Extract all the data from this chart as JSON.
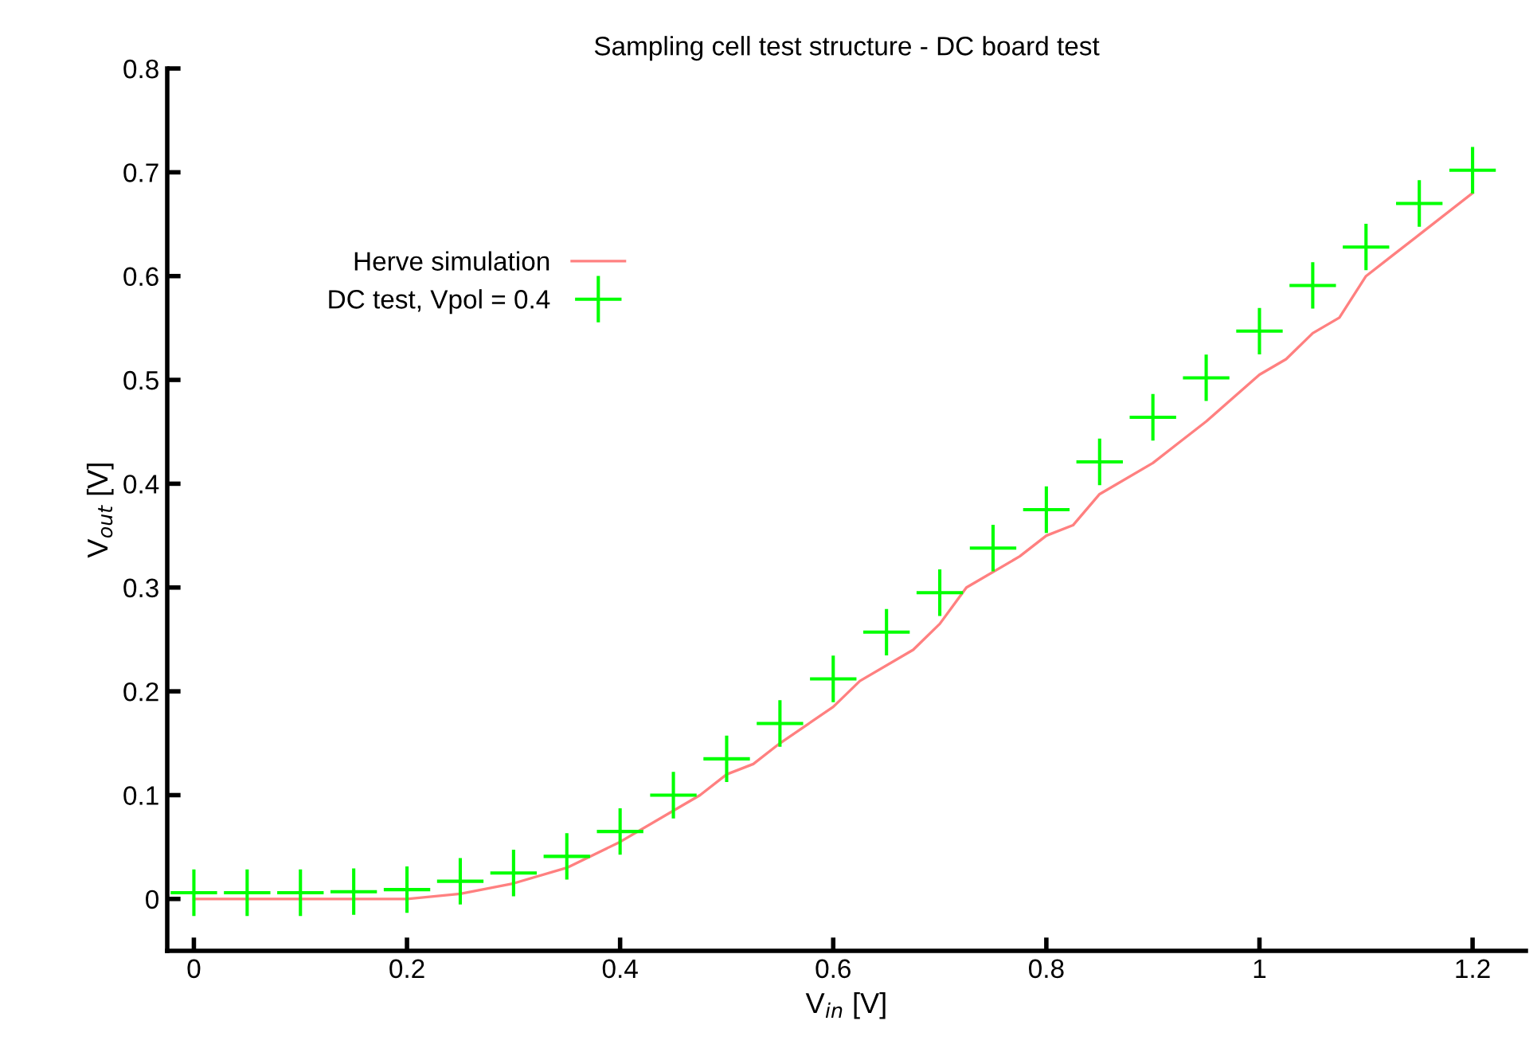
{
  "chart_data": {
    "type": "line",
    "title": "Sampling cell test structure - DC board test",
    "xlabel": "V$_{in}$ [V]",
    "ylabel": "V$_{out}$ [V]",
    "xlim": [
      -0.025,
      1.25
    ],
    "ylim": [
      -0.05,
      0.8
    ],
    "xticks": [
      0,
      0.2,
      0.4,
      0.6,
      0.8,
      1,
      1.2
    ],
    "yticks": [
      0,
      0.1,
      0.2,
      0.3,
      0.4,
      0.5,
      0.6,
      0.7,
      0.8
    ],
    "grid": false,
    "legend": "top left",
    "series": [
      {
        "name": "Herve simulation",
        "color": "#ff8080",
        "marker": "none",
        "x": [
          0,
          0.2,
          0.25,
          0.3,
          0.35,
          0.4,
          0.45,
          0.475,
          0.5,
          0.525,
          0.55,
          0.6,
          0.625,
          0.675,
          0.7,
          0.725,
          0.775,
          0.8,
          0.825,
          0.85,
          0.9,
          0.925,
          0.95,
          1.0,
          1.025,
          1.05,
          1.075,
          1.1,
          1.125,
          1.15,
          1.2
        ],
        "values": [
          0,
          0,
          0.005,
          0.015,
          0.03,
          0.055,
          0.085,
          0.1,
          0.12,
          0.13,
          0.15,
          0.185,
          0.21,
          0.24,
          0.265,
          0.3,
          0.33,
          0.35,
          0.36,
          0.39,
          0.42,
          0.44,
          0.46,
          0.505,
          0.52,
          0.545,
          0.56,
          0.6,
          0.62,
          0.64,
          0.68
        ]
      },
      {
        "name": "DC test, Vpol = 0.4",
        "type": "scatter",
        "color": "#00ff00",
        "marker": "cross",
        "x": [
          0,
          0.05,
          0.1,
          0.15,
          0.2,
          0.25,
          0.3,
          0.35,
          0.4,
          0.45,
          0.5,
          0.55,
          0.6,
          0.65,
          0.7,
          0.75,
          0.8,
          0.85,
          0.9,
          0.95,
          1.0,
          1.05,
          1.1,
          1.15,
          1.2
        ],
        "values": [
          0.006,
          0.006,
          0.006,
          0.007,
          0.009,
          0.017,
          0.025,
          0.041,
          0.065,
          0.1,
          0.135,
          0.169,
          0.212,
          0.257,
          0.295,
          0.338,
          0.375,
          0.421,
          0.464,
          0.502,
          0.547,
          0.591,
          0.628,
          0.67,
          0.702
        ]
      }
    ]
  }
}
